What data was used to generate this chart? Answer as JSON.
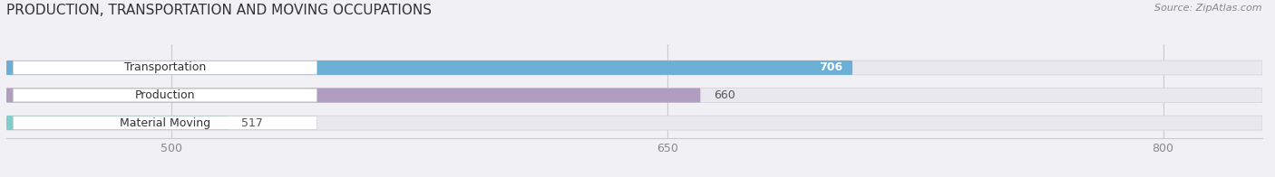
{
  "title": "PRODUCTION, TRANSPORTATION AND MOVING OCCUPATIONS",
  "source_text": "Source: ZipAtlas.com",
  "categories": [
    "Transportation",
    "Production",
    "Material Moving"
  ],
  "values": [
    706,
    660,
    517
  ],
  "bar_colors": [
    "#6baed6",
    "#b09dc0",
    "#7ececa"
  ],
  "bar_bg_color": "#e8e8ee",
  "label_box_color": "#ffffff",
  "xlim": [
    450,
    830
  ],
  "xticks": [
    500,
    650,
    800
  ],
  "title_fontsize": 11,
  "tick_fontsize": 9,
  "bar_label_fontsize": 9,
  "cat_label_fontsize": 9,
  "fig_bg_color": "#f0f0f5",
  "plot_bg_color": "#f0f0f5"
}
